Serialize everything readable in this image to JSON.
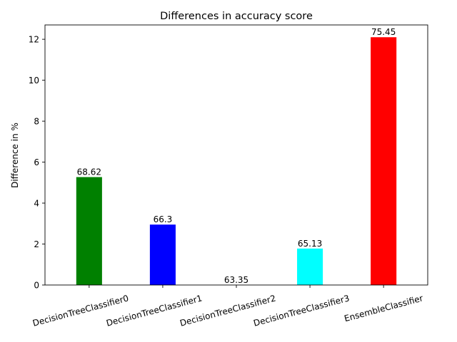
{
  "chart_data": {
    "type": "bar",
    "title": "Differences in accuracy score",
    "xlabel": "",
    "ylabel": "Difference in %",
    "categories": [
      "DecisionTreeClassifier0",
      "DecisionTreeClassifier1",
      "DecisionTreeClassifier2",
      "DecisionTreeClassifier3",
      "EnsembleClassifier"
    ],
    "values": [
      5.27,
      2.95,
      0.0,
      1.78,
      12.1
    ],
    "bar_labels": [
      "68.62",
      "66.3",
      "63.35",
      "65.13",
      "75.45"
    ],
    "colors": [
      "#008000",
      "#0000ff",
      "#ffffff",
      "#00ffff",
      "#ff0000"
    ],
    "ylim": [
      0,
      12.7
    ],
    "yticks": [
      0,
      2,
      4,
      6,
      8,
      10,
      12
    ],
    "ytick_labels": [
      "0",
      "2",
      "4",
      "6",
      "8",
      "10",
      "12"
    ],
    "xtick_rotation_deg": 15,
    "grid": false,
    "legend": "none"
  }
}
